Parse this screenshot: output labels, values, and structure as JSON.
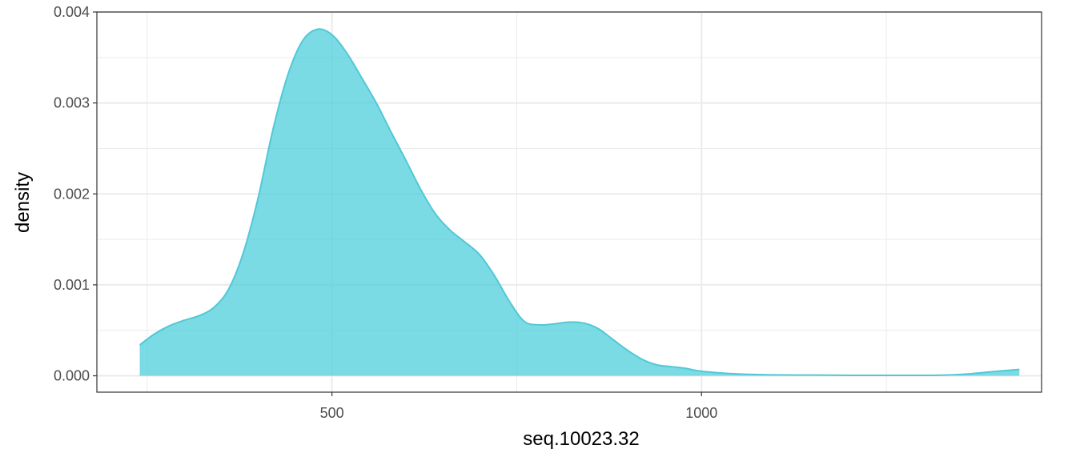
{
  "chart_data": {
    "type": "area",
    "title": "",
    "xlabel": "seq.10023.32",
    "ylabel": "density",
    "xlim": [
      182,
      1460
    ],
    "ylim": [
      -0.00018,
      0.004
    ],
    "x_ticks": [
      {
        "value": 500,
        "label": "500"
      },
      {
        "value": 1000,
        "label": "1000"
      }
    ],
    "x_minor_ticks": [
      250,
      750,
      1250
    ],
    "y_ticks": [
      {
        "value": 0,
        "label": "0.000"
      },
      {
        "value": 0.001,
        "label": "0.001"
      },
      {
        "value": 0.002,
        "label": "0.002"
      },
      {
        "value": 0.003,
        "label": "0.003"
      },
      {
        "value": 0.004,
        "label": "0.004"
      }
    ],
    "y_minor_ticks": [
      0.0005,
      0.0015,
      0.0025,
      0.0035
    ],
    "grid": true,
    "legend": "none",
    "colors": {
      "fill": "#4dcfdb",
      "line": "#52c8d6",
      "grid": "#ebebeb",
      "panel_border": "#333333"
    },
    "series": [
      {
        "x": [
          240,
          260,
          280,
          300,
          320,
          340,
          360,
          380,
          400,
          420,
          440,
          460,
          480,
          500,
          520,
          540,
          560,
          580,
          600,
          620,
          640,
          660,
          680,
          700,
          720,
          740,
          760,
          780,
          800,
          820,
          840,
          860,
          880,
          900,
          920,
          940,
          960,
          980,
          1000,
          1050,
          1100,
          1150,
          1200,
          1250,
          1300,
          1320,
          1340,
          1360,
          1380,
          1400,
          1430
        ],
        "y": [
          0.00034,
          0.00046,
          0.00055,
          0.00061,
          0.00066,
          0.00075,
          0.00095,
          0.00135,
          0.00195,
          0.0027,
          0.0033,
          0.00368,
          0.00381,
          0.00375,
          0.00355,
          0.00328,
          0.003,
          0.00268,
          0.00237,
          0.00205,
          0.00178,
          0.0016,
          0.00147,
          0.00133,
          0.0011,
          0.00082,
          0.0006,
          0.00056,
          0.00057,
          0.00059,
          0.00058,
          0.00052,
          0.0004,
          0.00028,
          0.00018,
          0.00012,
          0.0001,
          8e-05,
          5e-05,
          2e-05,
          1e-05,
          8e-06,
          5e-06,
          5e-06,
          5e-06,
          6e-06,
          1e-05,
          2e-05,
          3.5e-05,
          5e-05,
          7e-05
        ]
      }
    ]
  }
}
